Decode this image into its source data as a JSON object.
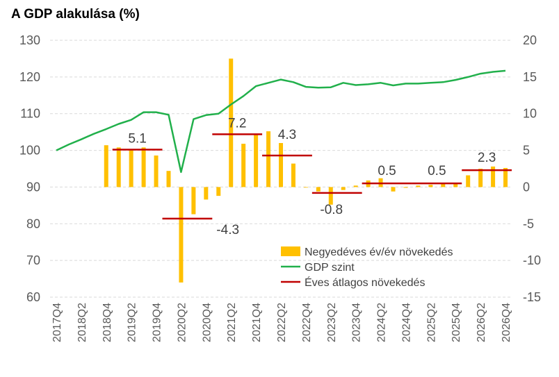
{
  "chart_data": {
    "type": "bar+line",
    "title": "A GDP alakulása (%)",
    "categories": [
      "2017Q4",
      "2018Q1",
      "2018Q2",
      "2018Q3",
      "2018Q4",
      "2019Q1",
      "2019Q2",
      "2019Q3",
      "2019Q4",
      "2020Q1",
      "2020Q2",
      "2020Q3",
      "2020Q4",
      "2021Q1",
      "2021Q2",
      "2021Q3",
      "2021Q4",
      "2022Q1",
      "2022Q2",
      "2022Q3",
      "2022Q4",
      "2023Q1",
      "2023Q2",
      "2023Q3",
      "2023Q4",
      "2024Q1",
      "2024Q2",
      "2024Q3",
      "2024Q4",
      "2025Q1",
      "2025Q2",
      "2025Q3",
      "2025Q4",
      "2026Q1",
      "2026Q2",
      "2026Q3",
      "2026Q4"
    ],
    "x_tick_labels": [
      "2017Q4",
      "2018Q2",
      "2018Q4",
      "2019Q2",
      "2019Q4",
      "2020Q2",
      "2020Q4",
      "2021Q2",
      "2021Q4",
      "2022Q2",
      "2022Q4",
      "2023Q2",
      "2023Q4",
      "2024Q2",
      "2024Q4",
      "2025Q2",
      "2025Q4",
      "2026Q2",
      "2026Q4"
    ],
    "left_axis": {
      "min": 60,
      "max": 130,
      "ticks": [
        "60",
        "70",
        "80",
        "90",
        "100",
        "110",
        "120",
        "130"
      ]
    },
    "right_axis": {
      "min": -15,
      "max": 20,
      "ticks": [
        "-15",
        "-10",
        "-5",
        "0",
        "5",
        "10",
        "15",
        "20"
      ]
    },
    "series": [
      {
        "name": "Negyedéves év/év növekedés",
        "type": "bar",
        "axis": "right",
        "color": "#FFC000",
        "values": [
          null,
          null,
          null,
          null,
          5.7,
          5.4,
          5.0,
          5.4,
          4.3,
          2.2,
          -13.0,
          -3.7,
          -1.7,
          -1.2,
          17.5,
          5.9,
          7.2,
          7.6,
          6.0,
          3.2,
          0,
          -0.6,
          -2.4,
          -0.4,
          0.2,
          0.9,
          1.2,
          -0.6,
          -0.1,
          0.2,
          0.3,
          0.6,
          0.5,
          1.6,
          2.5,
          2.8,
          2.6
        ]
      },
      {
        "name": "GDP szint",
        "type": "line",
        "axis": "left",
        "color": "#21B04B",
        "values": [
          100.0,
          101.6,
          103.0,
          104.5,
          105.8,
          107.2,
          108.3,
          110.4,
          110.4,
          109.7,
          94.1,
          108.5,
          109.6,
          110.0,
          112.5,
          114.8,
          117.5,
          118.4,
          119.3,
          118.6,
          117.3,
          117.1,
          117.2,
          118.4,
          117.8,
          118.0,
          118.4,
          117.7,
          118.2,
          118.2,
          118.4,
          118.6,
          119.2,
          120.0,
          120.9,
          121.4,
          121.7
        ]
      },
      {
        "name": "Éves átlagos növekedés",
        "type": "annual_average",
        "axis": "right",
        "color": "#C00000",
        "segments": [
          {
            "year": "2019",
            "value": 5.1,
            "label": "5.1"
          },
          {
            "year": "2020",
            "value": -4.3,
            "label": "-4.3"
          },
          {
            "year": "2021",
            "value": 7.2,
            "label": "7.2"
          },
          {
            "year": "2022",
            "value": 4.3,
            "label": "4.3"
          },
          {
            "year": "2023",
            "value": -0.8,
            "label": "-0.8"
          },
          {
            "year": "2024",
            "value": 0.5,
            "label": "0.5"
          },
          {
            "year": "2025",
            "value": 0.5,
            "label": "0.5"
          },
          {
            "year": "2026",
            "value": 2.3,
            "label": "2.3"
          }
        ]
      }
    ],
    "legend": {
      "position": "bottom-right",
      "items": [
        "Negyedéves év/év növekedés",
        "GDP szint",
        "Éves átlagos növekedés"
      ]
    },
    "grid": "horizontal-dashed"
  }
}
